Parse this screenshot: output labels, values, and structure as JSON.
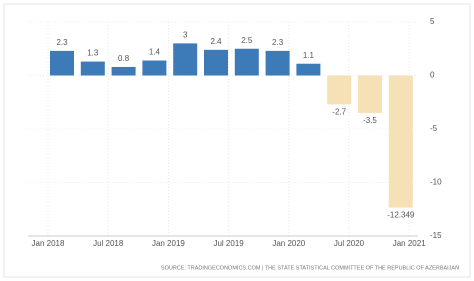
{
  "chart_data": {
    "type": "bar",
    "categories": [
      null,
      null,
      null,
      null,
      null,
      null,
      null,
      null,
      null,
      null,
      null,
      null
    ],
    "values": [
      2.3,
      1.3,
      0.8,
      1.4,
      3,
      2.4,
      2.5,
      2.3,
      1.1,
      -2.7,
      -3.5,
      -12.349
    ],
    "positive_color": "#3d7ab8",
    "negative_color": "#f6e0b5",
    "x_labels": [
      "Jan 2018",
      "Jul 2018",
      "Jan 2019",
      "Jul 2019",
      "Jan 2020",
      "Jul 2020",
      "Jan 2021"
    ],
    "ylim": [
      -15,
      5
    ],
    "yticks": [
      5,
      0,
      -5,
      -10,
      -15
    ],
    "grid": true,
    "source": "SOURCE: TRADINGECONOMICS.COM | THE STATE STATISTICAL COMMITTEE OF THE REPUBLIC OF AZERBAIJAN"
  }
}
